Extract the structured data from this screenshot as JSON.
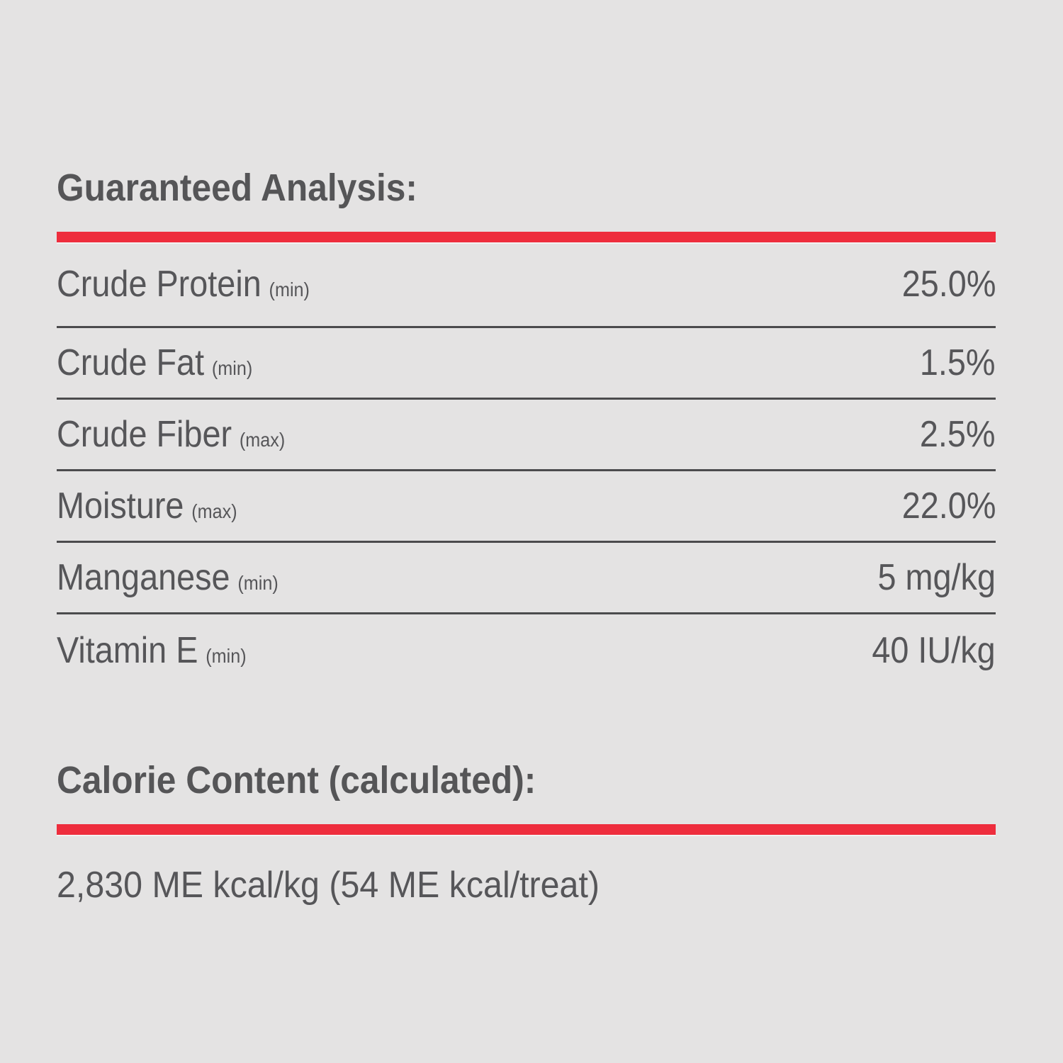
{
  "page": {
    "background_color": "#e4e3e3",
    "text_color": "#565659",
    "accent_red": "#ee2d3d",
    "divider_color": "#4b4b4d"
  },
  "guaranteed_analysis": {
    "title": "Guaranteed Analysis:",
    "rows": [
      {
        "label": "Crude Protein",
        "qualifier": "(min)",
        "value": "25.0%"
      },
      {
        "label": "Crude Fat",
        "qualifier": "(min)",
        "value": "1.5%"
      },
      {
        "label": "Crude Fiber",
        "qualifier": "(max)",
        "value": "2.5%"
      },
      {
        "label": "Moisture",
        "qualifier": "(max)",
        "value": "22.0%"
      },
      {
        "label": "Manganese",
        "qualifier": "(min)",
        "value": "5 mg/kg"
      },
      {
        "label": "Vitamin E",
        "qualifier": "(min)",
        "value": "40 IU/kg"
      }
    ]
  },
  "calorie_content": {
    "title": "Calorie Content (calculated):",
    "value": "2,830 ME kcal/kg (54 ME kcal/treat)"
  }
}
